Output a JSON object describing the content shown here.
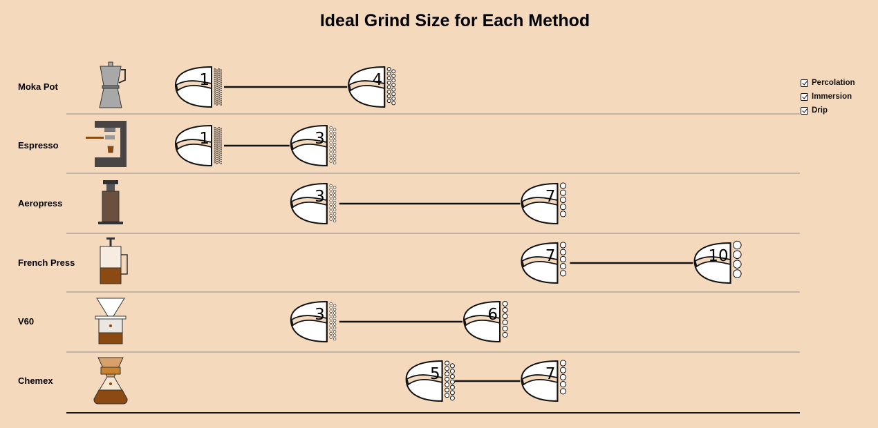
{
  "chart_data": {
    "type": "range",
    "title": "Ideal Grind Size for Each Method",
    "xlim": [
      1,
      10
    ],
    "methods": [
      {
        "name": "Moka Pot",
        "icon": "moka-pot-icon",
        "min": 1,
        "max": 4
      },
      {
        "name": "Espresso",
        "icon": "espresso-machine-icon",
        "min": 1,
        "max": 3
      },
      {
        "name": "Aeropress",
        "icon": "aeropress-icon",
        "min": 3,
        "max": 7
      },
      {
        "name": "French Press",
        "icon": "french-press-icon",
        "min": 7,
        "max": 10
      },
      {
        "name": "V60",
        "icon": "v60-icon",
        "min": 3,
        "max": 6
      },
      {
        "name": "Chemex",
        "icon": "chemex-icon",
        "min": 5,
        "max": 7
      }
    ],
    "legend": [
      "Percolation",
      "Immersion",
      "Drip"
    ],
    "legend_position": "top-right",
    "colors": {
      "background": "#f5d9bd",
      "line": "#111111",
      "coffee": "#8b4a12",
      "espresso_machine": "#4a4545",
      "metal": "#a8a8a8"
    }
  }
}
